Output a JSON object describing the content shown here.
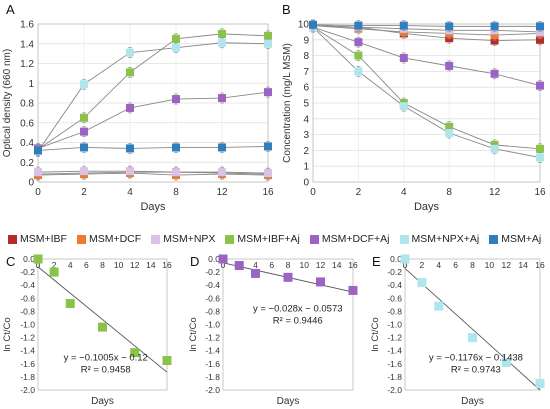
{
  "legend": [
    {
      "name": "MSM+IBF",
      "color": "#b52a2a"
    },
    {
      "name": "MSM+DCF",
      "color": "#f07a2a"
    },
    {
      "name": "MSM+NPX",
      "color": "#d9c2e6"
    },
    {
      "name": "MSM+IBF+Aj",
      "color": "#8bc34a"
    },
    {
      "name": "MSM+DCF+Aj",
      "color": "#9a63c4"
    },
    {
      "name": "MSM+NPX+Aj",
      "color": "#aee6ee"
    },
    {
      "name": "MSM+Aj",
      "color": "#2f7fbf"
    }
  ],
  "chart_data": [
    {
      "panel": "A",
      "type": "line",
      "xlabel": "Days",
      "ylabel": "Optical density (660 nm)",
      "categories": [
        "0",
        "2",
        "4",
        "8",
        "12",
        "16"
      ],
      "ylim": [
        0,
        1.6
      ],
      "yticks": [
        "0",
        "0.2",
        "0.4",
        "0.6",
        "0.8",
        "1",
        "1.2",
        "1.4",
        "1.6"
      ],
      "grid": true,
      "series": [
        {
          "name": "MSM+IBF",
          "color": "#b52a2a",
          "values": [
            0.08,
            0.09,
            0.1,
            0.1,
            0.09,
            0.08
          ]
        },
        {
          "name": "MSM+DCF",
          "color": "#f07a2a",
          "values": [
            0.07,
            0.08,
            0.09,
            0.07,
            0.08,
            0.07
          ]
        },
        {
          "name": "MSM+NPX",
          "color": "#d9c2e6",
          "values": [
            0.1,
            0.11,
            0.11,
            0.1,
            0.1,
            0.09
          ]
        },
        {
          "name": "MSM+IBF+Aj",
          "color": "#8bc34a",
          "values": [
            0.33,
            0.65,
            1.11,
            1.45,
            1.5,
            1.48
          ]
        },
        {
          "name": "MSM+DCF+Aj",
          "color": "#9a63c4",
          "values": [
            0.34,
            0.51,
            0.75,
            0.84,
            0.85,
            0.91
          ]
        },
        {
          "name": "MSM+NPX+Aj",
          "color": "#aee6ee",
          "values": [
            0.31,
            0.99,
            1.31,
            1.36,
            1.41,
            1.4
          ]
        },
        {
          "name": "MSM+Aj",
          "color": "#2f7fbf",
          "values": [
            0.32,
            0.35,
            0.34,
            0.35,
            0.35,
            0.36
          ]
        }
      ]
    },
    {
      "panel": "B",
      "type": "line",
      "xlabel": "Days",
      "ylabel": "Concentration (mg/L MSM)",
      "categories": [
        "0",
        "2",
        "4",
        "8",
        "12",
        "16"
      ],
      "ylim": [
        0,
        10
      ],
      "yticks": [
        "0",
        "1",
        "2",
        "3",
        "4",
        "5",
        "6",
        "7",
        "8",
        "9",
        "10"
      ],
      "grid": true,
      "series": [
        {
          "name": "MSM+IBF",
          "color": "#b52a2a",
          "values": [
            9.9,
            9.8,
            9.4,
            9.1,
            8.95,
            9.0
          ]
        },
        {
          "name": "MSM+DCF",
          "color": "#f07a2a",
          "values": [
            9.9,
            9.7,
            9.5,
            9.4,
            9.3,
            9.4
          ]
        },
        {
          "name": "MSM+NPX",
          "color": "#d9c2e6",
          "values": [
            9.9,
            9.8,
            9.7,
            9.6,
            9.6,
            9.5
          ]
        },
        {
          "name": "MSM+IBF+Aj",
          "color": "#8bc34a",
          "values": [
            9.8,
            8.0,
            5.0,
            3.5,
            2.35,
            2.1
          ]
        },
        {
          "name": "MSM+DCF+Aj",
          "color": "#9a63c4",
          "values": [
            9.8,
            8.85,
            7.85,
            7.35,
            6.85,
            6.1
          ]
        },
        {
          "name": "MSM+NPX+Aj",
          "color": "#aee6ee",
          "values": [
            9.8,
            7.0,
            4.8,
            3.1,
            2.1,
            1.55
          ]
        },
        {
          "name": "MSM+Aj",
          "color": "#2f7fbf",
          "values": [
            9.95,
            9.9,
            9.9,
            9.85,
            9.85,
            9.85
          ]
        }
      ]
    },
    {
      "panel": "C",
      "type": "scatter",
      "xlabel": "Days",
      "ylabel": "ln Ct/Co",
      "color": "#8bc34a",
      "xlim": [
        0,
        16
      ],
      "ylim": [
        -2.0,
        0.0
      ],
      "xticks": [
        "0",
        "2",
        "4",
        "6",
        "8",
        "10",
        "12",
        "14",
        "16"
      ],
      "yticks": [
        "0.0",
        "-0.2",
        "-0.4",
        "-0.6",
        "-0.8",
        "-1.0",
        "-1.2",
        "-1.4",
        "-1.6",
        "-1.8",
        "-2.0"
      ],
      "points": [
        [
          0,
          0.0
        ],
        [
          2,
          -0.2
        ],
        [
          4,
          -0.68
        ],
        [
          8,
          -1.04
        ],
        [
          12,
          -1.43
        ],
        [
          16,
          -1.55
        ]
      ],
      "fit": {
        "slope": -0.1005,
        "intercept": -0.12
      },
      "equation": "y = −0.1005x − 0.12",
      "r2": "R² = 0.9458"
    },
    {
      "panel": "D",
      "type": "scatter",
      "xlabel": "Days",
      "ylabel": "ln Ct/Co",
      "color": "#9a63c4",
      "xlim": [
        0,
        16
      ],
      "ylim": [
        -2.0,
        0.0
      ],
      "xticks": [
        "0",
        "2",
        "4",
        "6",
        "8",
        "10",
        "12",
        "14",
        "16"
      ],
      "yticks": [
        "0.0",
        "-0.2",
        "-0.4",
        "-0.6",
        "-0.8",
        "-1.0",
        "-1.2",
        "-1.4",
        "-1.6",
        "-1.8",
        "-2.0"
      ],
      "points": [
        [
          0,
          0.0
        ],
        [
          2,
          -0.1
        ],
        [
          4,
          -0.22
        ],
        [
          8,
          -0.28
        ],
        [
          12,
          -0.35
        ],
        [
          16,
          -0.48
        ]
      ],
      "fit": {
        "slope": -0.028,
        "intercept": -0.0573
      },
      "equation": "y = −0.028x − 0.0573",
      "r2": "R² = 0.9446"
    },
    {
      "panel": "E",
      "type": "scatter",
      "xlabel": "Days",
      "ylabel": "ln Ct/Co",
      "color": "#aee6ee",
      "xlim": [
        0,
        16
      ],
      "ylim": [
        -2.0,
        0.0
      ],
      "xticks": [
        "0",
        "2",
        "4",
        "6",
        "8",
        "10",
        "12",
        "14",
        "16"
      ],
      "yticks": [
        "0.0",
        "-0.2",
        "-0.4",
        "-0.6",
        "-0.8",
        "-1.0",
        "-1.2",
        "-1.4",
        "-1.6",
        "-1.8",
        "-2.0"
      ],
      "points": [
        [
          0,
          0.0
        ],
        [
          2,
          -0.36
        ],
        [
          4,
          -0.72
        ],
        [
          8,
          -1.2
        ],
        [
          12,
          -1.58
        ],
        [
          16,
          -1.9
        ]
      ],
      "fit": {
        "slope": -0.1176,
        "intercept": -0.1438
      },
      "equation": "y = −0.1176x − 0.1438",
      "r2": "R² = 0.9743"
    }
  ]
}
